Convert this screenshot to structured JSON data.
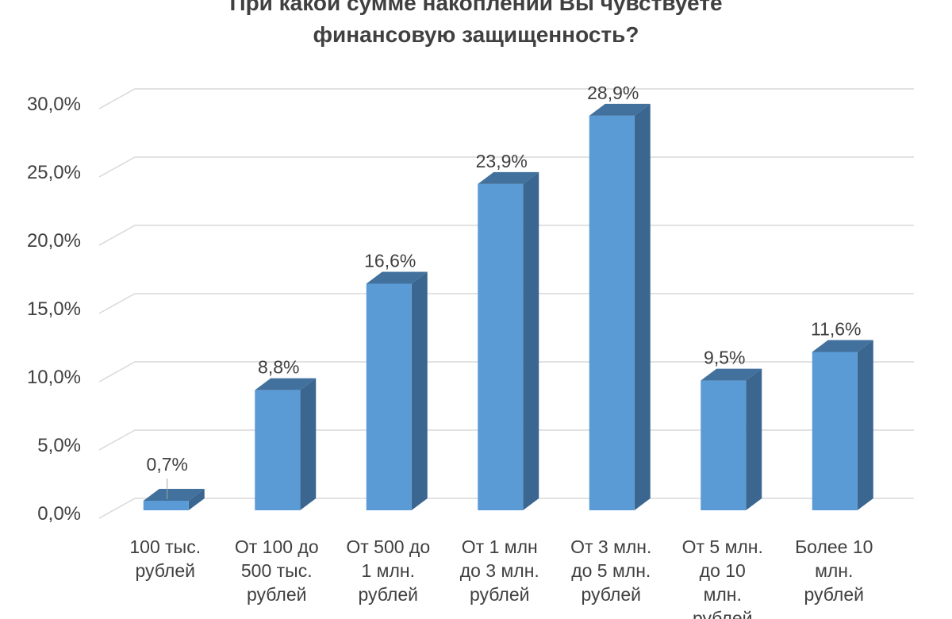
{
  "chart_data": {
    "type": "bar",
    "title_lines": [
      "При какой сумме накоплений Вы чувствуете",
      "финансовую защищенность?"
    ],
    "categories": [
      [
        "100 тыс.",
        "рублей"
      ],
      [
        "От 100 до",
        "500 тыс.",
        "рублей"
      ],
      [
        "От 500 до",
        "1 млн.",
        "рублей"
      ],
      [
        "От 1 млн",
        "до 3 млн.",
        "рублей"
      ],
      [
        "От 3 млн.",
        "до 5 млн.",
        "рублей"
      ],
      [
        "От 5 млн.",
        "до 10",
        "млн.",
        "рублей"
      ],
      [
        "Более 10",
        "млн.",
        "рублей"
      ]
    ],
    "values": [
      0.7,
      8.8,
      16.6,
      23.9,
      28.9,
      9.5,
      11.6
    ],
    "data_labels": [
      "0,7%",
      "8,8%",
      "16,6%",
      "23,9%",
      "28,9%",
      "9,5%",
      "11,6%"
    ],
    "y_ticks": [
      "0,0%",
      "5,0%",
      "10,0%",
      "15,0%",
      "20,0%",
      "25,0%",
      "30,0%"
    ],
    "y_tick_values": [
      0,
      5,
      10,
      15,
      20,
      25,
      30
    ],
    "ylim": [
      0,
      30
    ],
    "grid": true,
    "three_d": true,
    "colors": {
      "bar_front": "#5b9bd5",
      "bar_side": "#3a6690",
      "bar_top": "#41719c",
      "grid": "#d9d9d9",
      "text": "#404040"
    }
  }
}
